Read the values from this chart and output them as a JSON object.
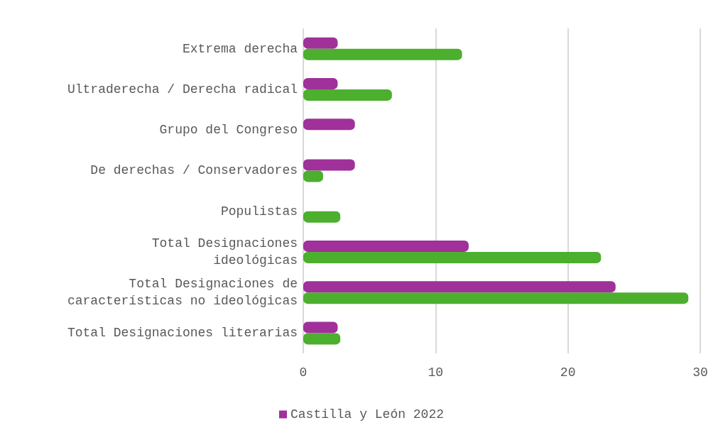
{
  "chart_data": {
    "type": "bar",
    "orientation": "horizontal",
    "categories": [
      "Extrema derecha",
      "Ultraderecha / Derecha radical",
      "Grupo del Congreso",
      "De derechas / Conservadores",
      "Populistas",
      "Total Designaciones\nideológicas",
      "Total Designaciones de\ncaracterísticas no ideológicas",
      "Total Designaciones literarias"
    ],
    "series": [
      {
        "name": "Castilla y León 2022",
        "color": "#a0309a",
        "values": [
          2.6,
          2.6,
          3.9,
          3.9,
          0,
          12.5,
          23.6,
          2.6
        ]
      },
      {
        "color": "#4caf2e",
        "values": [
          12.0,
          6.7,
          0,
          1.5,
          2.8,
          22.5,
          29.1,
          2.8
        ]
      }
    ],
    "xlim": [
      0,
      30
    ],
    "xticks": [
      0,
      10,
      20,
      30
    ],
    "grid": "x",
    "legend": "bottom"
  }
}
